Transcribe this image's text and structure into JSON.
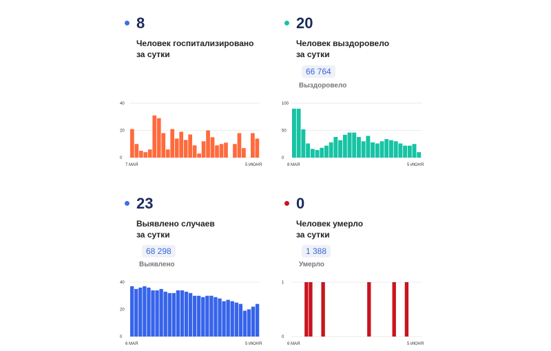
{
  "cards": [
    {
      "id": "hospitalized",
      "number": "8",
      "label_line1": "Человек госпитализировано",
      "label_line2": "за сутки",
      "dot_color": "#3f6ee8",
      "bar_color": "#ff6a3d"
    },
    {
      "id": "recovered",
      "number": "20",
      "label_line1": "Человек выздоровело",
      "label_line2": "за сутки",
      "total": "66 764",
      "total_label": "Выздоровело",
      "dot_color": "#17c3a4",
      "bar_color": "#17c3a4"
    },
    {
      "id": "cases",
      "number": "23",
      "label_line1": "Выявлено случаев",
      "label_line2": "за сутки",
      "total": "68 298",
      "total_label": "Выявлено",
      "dot_color": "#3f6ee8",
      "bar_color": "#3764ea"
    },
    {
      "id": "deaths",
      "number": "0",
      "label_line1": "Человек умерло",
      "label_line2": "за сутки",
      "total": "1 388",
      "total_label": "Умерло",
      "dot_color": "#c8141e",
      "bar_color": "#c8141e"
    }
  ],
  "chart_data": [
    {
      "type": "bar",
      "id": "hospitalized",
      "x_start_label": "7 МАЯ",
      "x_end_label": "5 ИЮНЯ",
      "y_ticks": [
        0,
        20,
        40
      ],
      "ylim": [
        0,
        40
      ],
      "values": [
        21,
        10,
        5,
        4,
        6,
        31,
        29,
        18,
        6,
        21,
        14,
        19,
        13,
        17,
        9,
        3,
        12,
        20,
        15,
        9,
        10,
        11,
        0,
        10,
        18,
        7,
        0,
        18,
        14
      ]
    },
    {
      "type": "bar",
      "id": "recovered",
      "x_start_label": "8 МАЯ",
      "x_end_label": "5 ИЮНЯ",
      "y_ticks": [
        0,
        50,
        100
      ],
      "ylim": [
        0,
        100
      ],
      "values": [
        90,
        90,
        52,
        26,
        16,
        14,
        18,
        22,
        28,
        38,
        32,
        42,
        46,
        46,
        38,
        30,
        40,
        28,
        26,
        30,
        34,
        32,
        30,
        26,
        22,
        22,
        25,
        10
      ]
    },
    {
      "type": "bar",
      "id": "cases",
      "x_start_label": "6 МАЯ",
      "x_end_label": "5 ИЮНЯ",
      "y_ticks": [
        0,
        20,
        40
      ],
      "ylim": [
        0,
        40
      ],
      "values": [
        37,
        35,
        36,
        37,
        36,
        34,
        34,
        35,
        33,
        32,
        32,
        34,
        34,
        33,
        32,
        30,
        30,
        29,
        30,
        30,
        29,
        28,
        26,
        27,
        26,
        25,
        24,
        19,
        20,
        22,
        24
      ]
    },
    {
      "type": "bar",
      "id": "deaths",
      "x_start_label": "6 МАЯ",
      "x_end_label": "5 ИЮНЯ",
      "y_ticks": [
        0,
        1
      ],
      "ylim": [
        0,
        1
      ],
      "values": [
        0,
        0,
        0,
        1,
        1,
        0,
        0,
        1,
        0,
        0,
        0,
        0,
        0,
        0,
        0,
        0,
        0,
        0,
        1,
        0,
        0,
        0,
        0,
        0,
        1,
        0,
        0,
        1,
        0,
        0,
        0
      ]
    }
  ]
}
